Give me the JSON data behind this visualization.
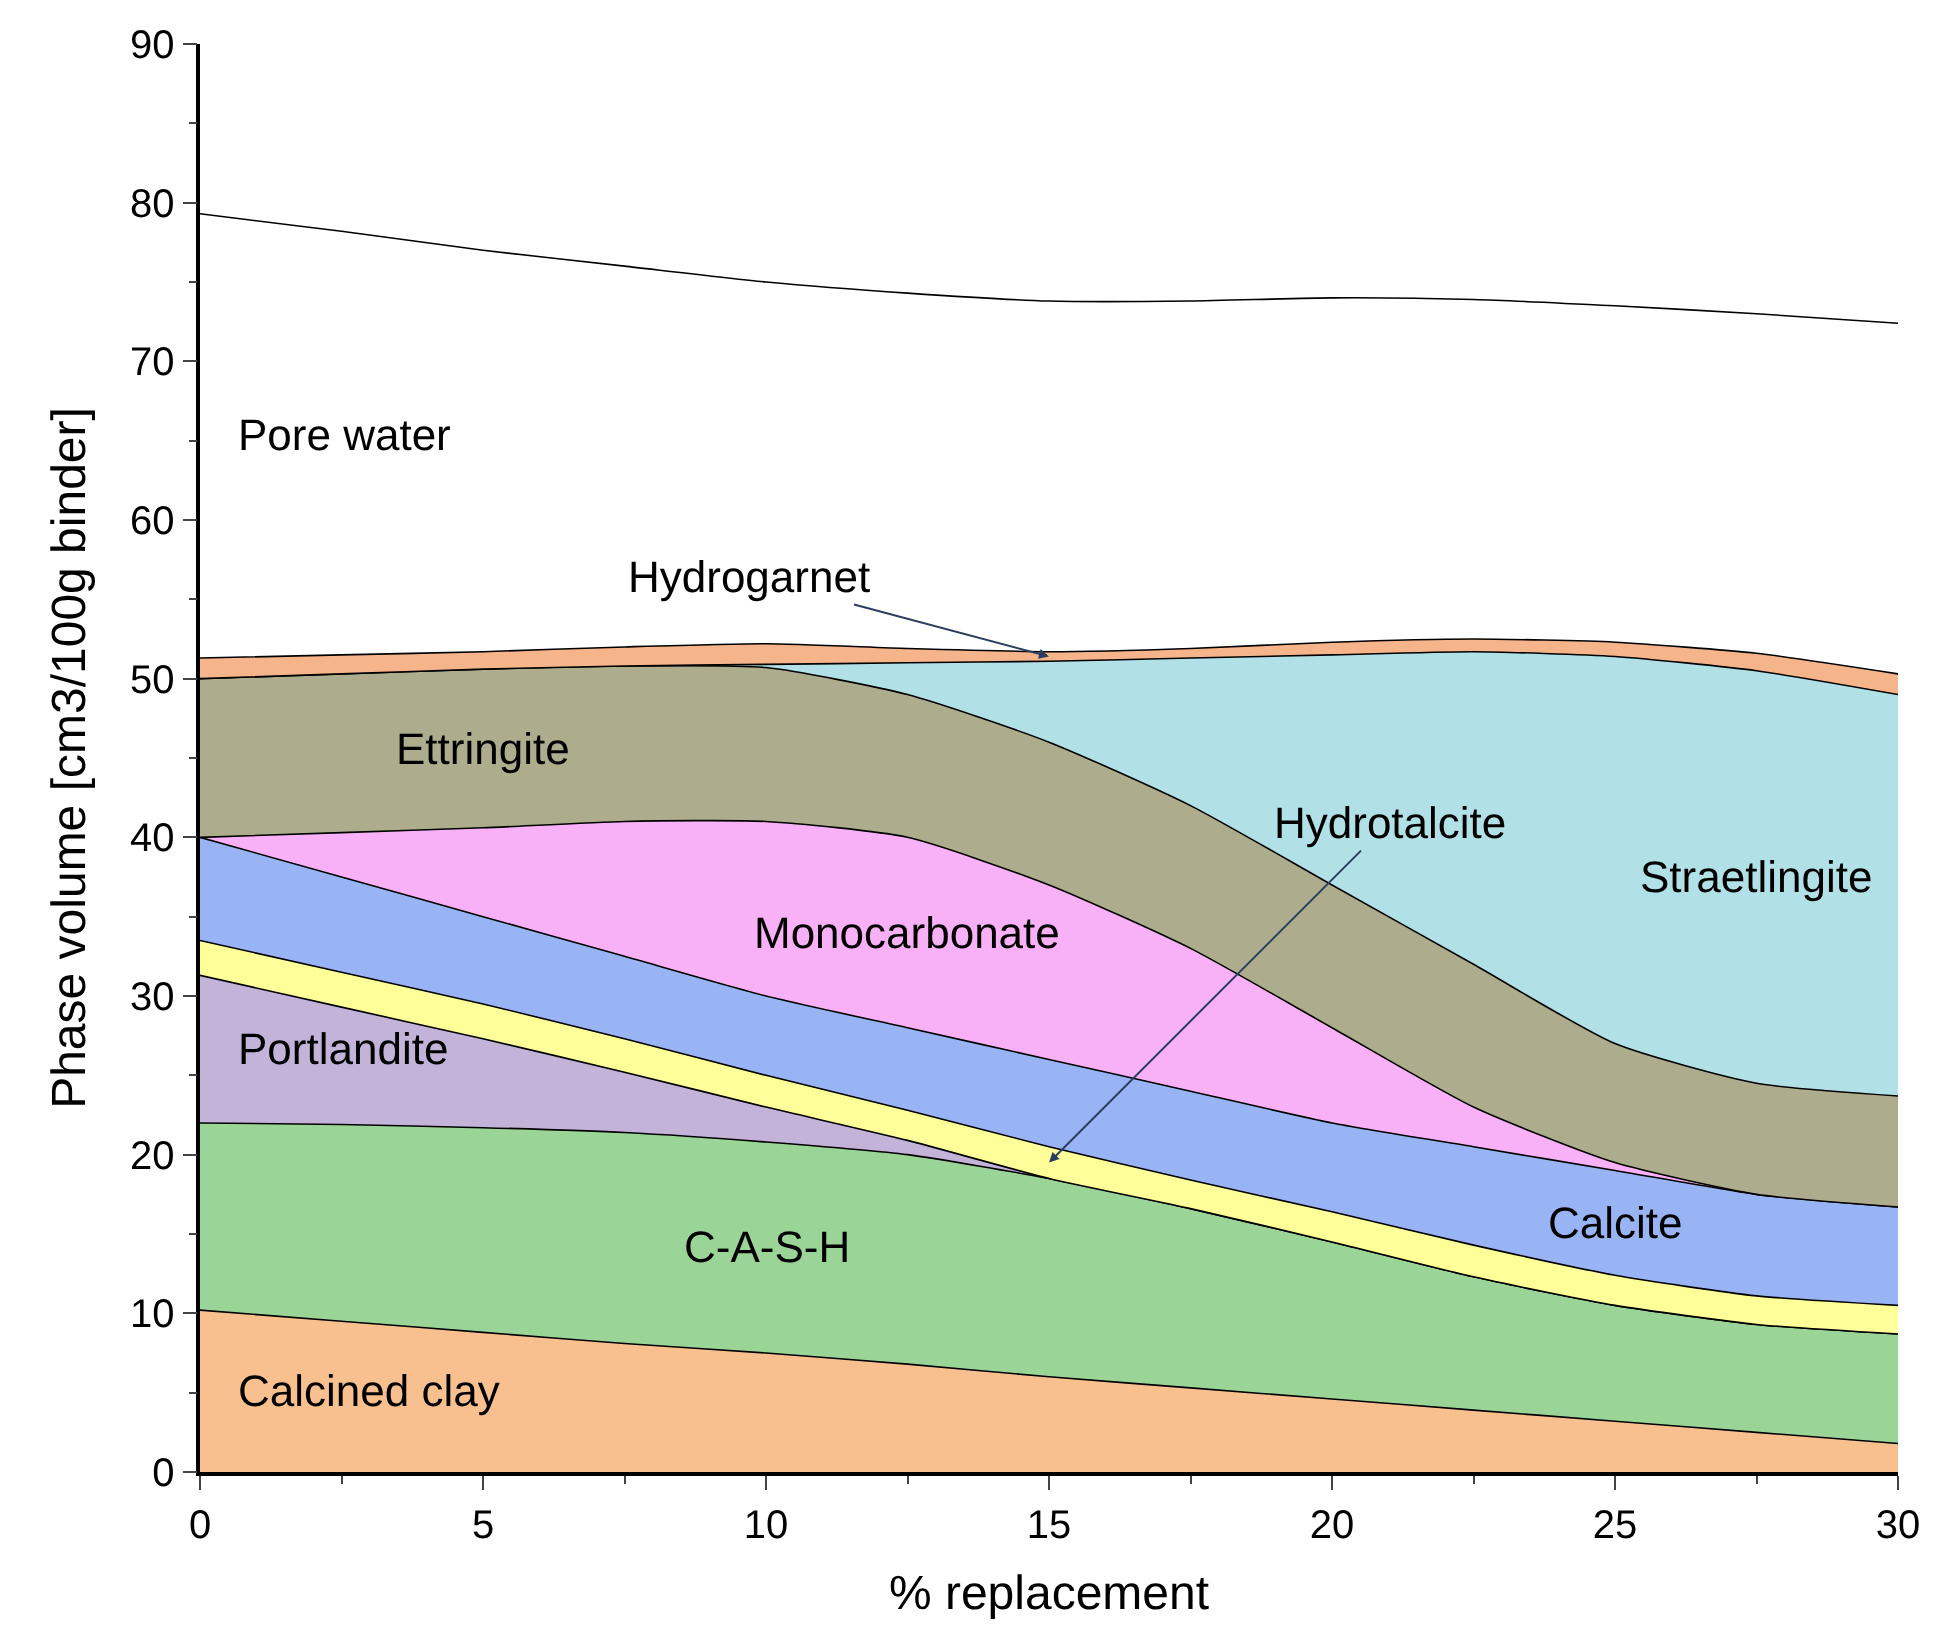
{
  "chart_data": {
    "type": "area",
    "stacked": true,
    "xlabel": "% replacement",
    "ylabel": "Phase volume [cm3/100g binder]",
    "x": [
      0,
      2.5,
      5,
      7.5,
      10,
      12.5,
      15,
      17.5,
      20,
      22.5,
      25,
      27.5,
      30
    ],
    "xlim": [
      0,
      30
    ],
    "xticks": [
      0,
      5,
      10,
      15,
      20,
      25,
      30
    ],
    "ylim": [
      0,
      90
    ],
    "yticks": [
      0,
      10,
      20,
      30,
      40,
      50,
      60,
      70,
      80,
      90
    ],
    "legend": false,
    "marker": "none",
    "series": [
      {
        "name": "Calcined clay",
        "color": "#f9c08f",
        "values": [
          10.2,
          9.5,
          8.8,
          8.1,
          7.5,
          6.8,
          6.0,
          5.3,
          4.6,
          3.9,
          3.2,
          2.5,
          1.8
        ]
      },
      {
        "name": "C-A-S-H",
        "color": "#9ad597",
        "values": [
          11.8,
          12.4,
          12.9,
          13.3,
          13.3,
          13.2,
          12.5,
          11.3,
          9.9,
          8.4,
          7.3,
          6.8,
          6.9
        ]
      },
      {
        "name": "Portlandite",
        "color": "#c3b3d8",
        "values": [
          9.3,
          7.4,
          5.6,
          3.8,
          2.2,
          0.9,
          0,
          0,
          0,
          0,
          0,
          0,
          0
        ]
      },
      {
        "name": "Hydrotalcite",
        "color": "#ffff99",
        "values": [
          2.2,
          2.2,
          2.2,
          2.1,
          2.0,
          1.9,
          2.0,
          1.8,
          1.9,
          2.0,
          1.9,
          1.8,
          1.8
        ]
      },
      {
        "name": "Calcite",
        "color": "#99b4f4",
        "values": [
          6.5,
          6.0,
          5.5,
          5.2,
          5.0,
          5.2,
          5.5,
          5.6,
          5.6,
          6.2,
          6.6,
          6.4,
          6.2
        ]
      },
      {
        "name": "Monocarbonate",
        "color": "#f8b0f6",
        "values": [
          0,
          2.8,
          5.6,
          8.5,
          11.0,
          12.0,
          11.0,
          9.0,
          6.0,
          2.5,
          0.5,
          0,
          0
        ]
      },
      {
        "name": "Ettringite",
        "color": "#adad8d",
        "values": [
          10.0,
          10.0,
          10.0,
          9.8,
          9.7,
          9.0,
          9.0,
          9.0,
          9.0,
          9.0,
          7.5,
          7.0,
          7.0
        ]
      },
      {
        "name": "Straetlingite",
        "color": "#b1e0e6",
        "values": [
          0,
          0,
          0,
          0,
          0.2,
          2.0,
          5.1,
          9.3,
          14.5,
          19.7,
          24.4,
          26.0,
          25.3
        ]
      },
      {
        "name": "Hydrogarnet",
        "color": "#f6b48a",
        "values": [
          1.3,
          1.2,
          1.1,
          1.2,
          1.3,
          0.9,
          0.6,
          0.6,
          0.8,
          0.8,
          0.9,
          1.1,
          1.3
        ]
      },
      {
        "name": "Pore water",
        "color": "#ffffff",
        "values": [
          28.0,
          26.7,
          25.3,
          24.0,
          22.8,
          22.4,
          22.1,
          21.9,
          21.7,
          21.4,
          21.2,
          21.4,
          22.1
        ]
      }
    ]
  }
}
